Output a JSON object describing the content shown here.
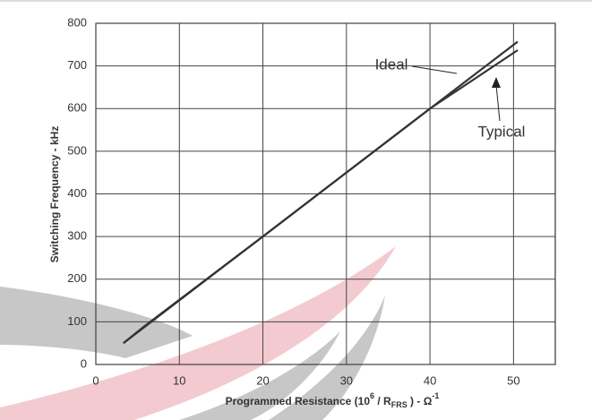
{
  "chart_data": {
    "type": "line",
    "xlabel_parts": [
      "Programmed Resistance  (10",
      "6",
      " / R",
      "FRS",
      " ) - Ω",
      "-1"
    ],
    "ylabel": "Switching Frequency - kHz",
    "annotations": [
      "Ideal",
      "Typical"
    ],
    "series": [
      {
        "name": "Ideal",
        "color": "#333333",
        "x": [
          3.3,
          50.5
        ],
        "values": [
          50,
          757
        ]
      },
      {
        "name": "Typical",
        "color": "#333333",
        "x": [
          3.3,
          5.7,
          20,
          35,
          40,
          50.5
        ],
        "values": [
          50,
          88,
          300,
          525,
          600,
          737
        ]
      }
    ],
    "xlim": [
      0,
      55
    ],
    "xticks": [
      0,
      10,
      20,
      30,
      40,
      50
    ],
    "ylim": [
      0,
      800
    ],
    "yticks": [
      0,
      100,
      200,
      300,
      400,
      500,
      600,
      700,
      800
    ],
    "grid": true
  }
}
